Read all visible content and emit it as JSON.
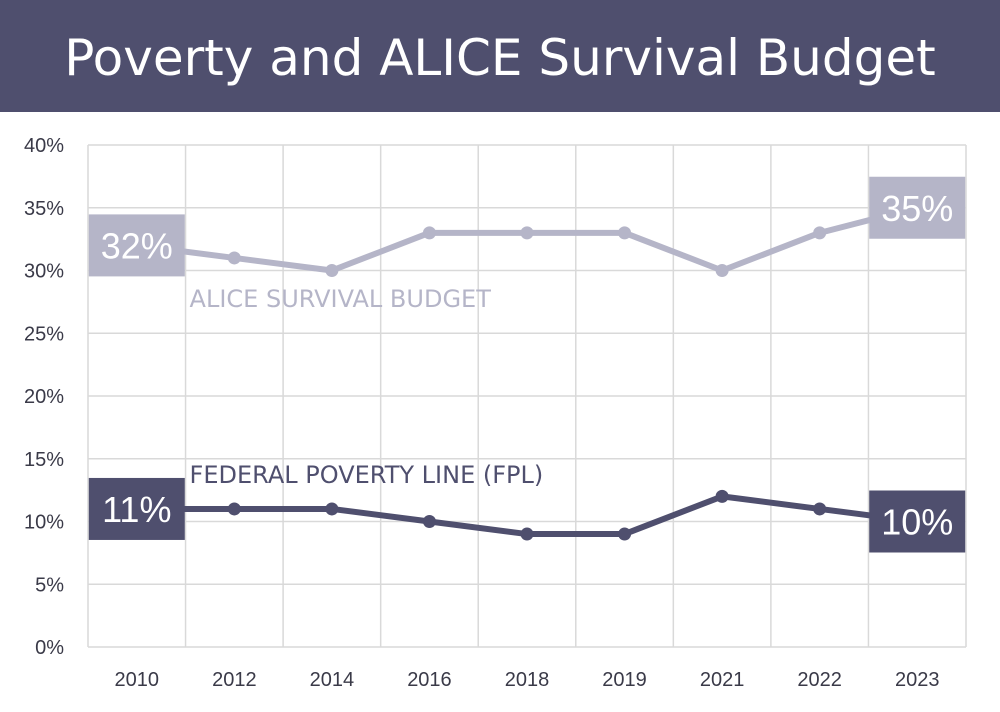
{
  "title": "Poverty and ALICE Survival Budget",
  "chart_data": {
    "type": "line",
    "categories": [
      "2010",
      "2012",
      "2014",
      "2016",
      "2018",
      "2019",
      "2021",
      "2022",
      "2023"
    ],
    "ylim": [
      0,
      40
    ],
    "y_ticks": [
      "0%",
      "5%",
      "10%",
      "15%",
      "20%",
      "25%",
      "30%",
      "35%",
      "40%"
    ],
    "grid": true,
    "series": [
      {
        "name": "ALICE SURVIVAL BUDGET",
        "values": [
          32,
          31,
          30,
          33,
          33,
          33,
          30,
          33,
          35
        ],
        "color": "#b5b5c8",
        "start_label": "32%",
        "end_label": "35%"
      },
      {
        "name": "FEDERAL POVERTY LINE (FPL)",
        "values": [
          11,
          11,
          11,
          10,
          9,
          9,
          12,
          11,
          10
        ],
        "color": "#4f4f6e",
        "start_label": "11%",
        "end_label": "10%"
      }
    ]
  }
}
